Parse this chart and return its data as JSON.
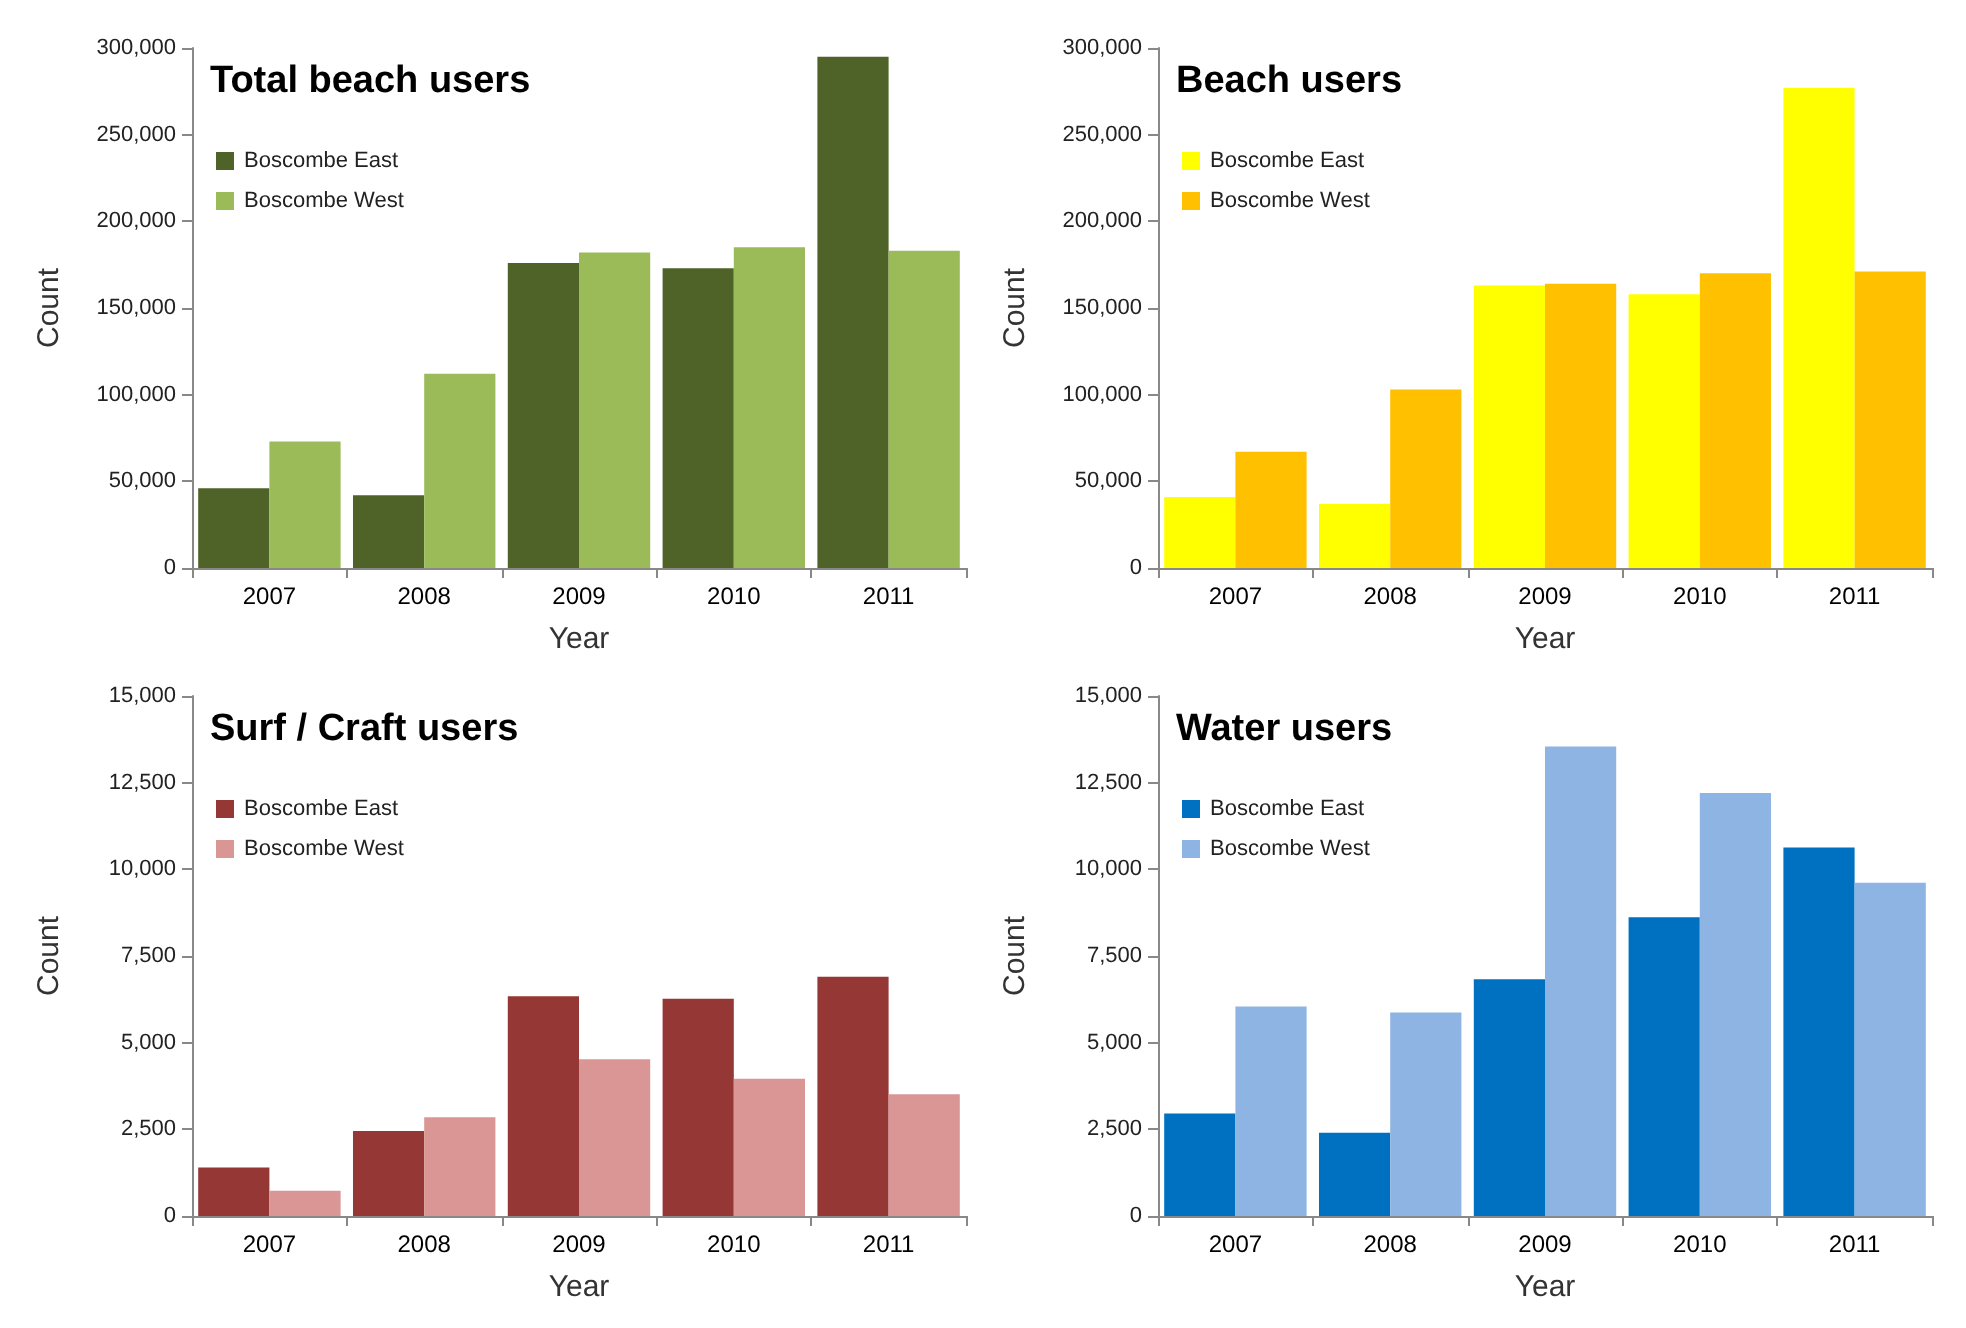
{
  "chart_data": [
    {
      "type": "bar",
      "title": "Total beach users",
      "xlabel": "Year",
      "ylabel": "Count",
      "categories": [
        "2007",
        "2008",
        "2009",
        "2010",
        "2011"
      ],
      "series": [
        {
          "name": "Boscombe East",
          "color": "#4f6228",
          "values": [
            46000,
            42000,
            176000,
            173000,
            295000
          ]
        },
        {
          "name": "Boscombe West",
          "color": "#9bbb59",
          "values": [
            73000,
            112000,
            182000,
            185000,
            183000
          ]
        }
      ],
      "ylim": [
        0,
        300000
      ],
      "yticks": [
        {
          "value": 0,
          "label": "0"
        },
        {
          "value": 50000,
          "label": "50,000"
        },
        {
          "value": 100000,
          "label": "100,000"
        },
        {
          "value": 150000,
          "label": "150,000"
        },
        {
          "value": 200000,
          "label": "200,000"
        },
        {
          "value": 250000,
          "label": "250,000"
        },
        {
          "value": 300000,
          "label": "300,000"
        }
      ],
      "grid": false,
      "legend": "top left"
    },
    {
      "type": "bar",
      "title": "Beach users",
      "xlabel": "Year",
      "ylabel": "Count",
      "categories": [
        "2007",
        "2008",
        "2009",
        "2010",
        "2011"
      ],
      "series": [
        {
          "name": "Boscombe East",
          "color": "#ffff00",
          "values": [
            41000,
            37000,
            163000,
            158000,
            277000
          ]
        },
        {
          "name": "Boscombe West",
          "color": "#ffc000",
          "values": [
            67000,
            103000,
            164000,
            170000,
            171000
          ]
        }
      ],
      "ylim": [
        0,
        300000
      ],
      "yticks": [
        {
          "value": 0,
          "label": "0"
        },
        {
          "value": 50000,
          "label": "50,000"
        },
        {
          "value": 100000,
          "label": "100,000"
        },
        {
          "value": 150000,
          "label": "150,000"
        },
        {
          "value": 200000,
          "label": "200,000"
        },
        {
          "value": 250000,
          "label": "250,000"
        },
        {
          "value": 300000,
          "label": "300,000"
        }
      ],
      "grid": false,
      "legend": "top left"
    },
    {
      "type": "bar",
      "title": "Surf / Craft users",
      "xlabel": "Year",
      "ylabel": "Count",
      "categories": [
        "2007",
        "2008",
        "2009",
        "2010",
        "2011"
      ],
      "series": [
        {
          "name": "Boscombe East",
          "color": "#953735",
          "values": [
            1400,
            2450,
            6340,
            6270,
            6900
          ]
        },
        {
          "name": "Boscombe West",
          "color": "#d99694",
          "values": [
            730,
            2850,
            4520,
            3960,
            3510
          ]
        }
      ],
      "ylim": [
        0,
        15000
      ],
      "yticks": [
        {
          "value": 0,
          "label": "0"
        },
        {
          "value": 2500,
          "label": "2,500"
        },
        {
          "value": 5000,
          "label": "5,000"
        },
        {
          "value": 7500,
          "label": "7,500"
        },
        {
          "value": 10000,
          "label": "10,000"
        },
        {
          "value": 12500,
          "label": "12,500"
        },
        {
          "value": 15000,
          "label": "15,000"
        }
      ],
      "grid": false,
      "legend": "top left"
    },
    {
      "type": "bar",
      "title": "Water users",
      "xlabel": "Year",
      "ylabel": "Count",
      "categories": [
        "2007",
        "2008",
        "2009",
        "2010",
        "2011"
      ],
      "series": [
        {
          "name": "Boscombe East",
          "color": "#0070c0",
          "values": [
            2960,
            2400,
            6830,
            8620,
            10630
          ]
        },
        {
          "name": "Boscombe West",
          "color": "#8eb4e3",
          "values": [
            6040,
            5870,
            13540,
            12200,
            9610
          ]
        }
      ],
      "ylim": [
        0,
        15000
      ],
      "yticks": [
        {
          "value": 0,
          "label": "0"
        },
        {
          "value": 2500,
          "label": "2,500"
        },
        {
          "value": 5000,
          "label": "5,000"
        },
        {
          "value": 7500,
          "label": "7,500"
        },
        {
          "value": 10000,
          "label": "10,000"
        },
        {
          "value": 12500,
          "label": "12,500"
        },
        {
          "value": 15000,
          "label": "15,000"
        }
      ],
      "grid": false,
      "legend": "top left"
    }
  ]
}
